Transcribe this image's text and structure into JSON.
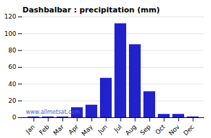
{
  "chart_data": {
    "type": "bar",
    "title": "Dashbalbar : precipitation (mm)",
    "categories": [
      "Jan",
      "Feb",
      "Mar",
      "Apr",
      "May",
      "Jun",
      "Jul",
      "Aug",
      "Sep",
      "Oct",
      "Nov",
      "Dec"
    ],
    "values": [
      1,
      1,
      1,
      12,
      15,
      47,
      112,
      87,
      31,
      4,
      4,
      1
    ],
    "color": "#2222cc",
    "ylim": [
      0,
      120
    ],
    "yticks": [
      0,
      20,
      40,
      60,
      80,
      100,
      120
    ],
    "grid": true,
    "annotations": [
      "www.allmetsat.com"
    ]
  }
}
